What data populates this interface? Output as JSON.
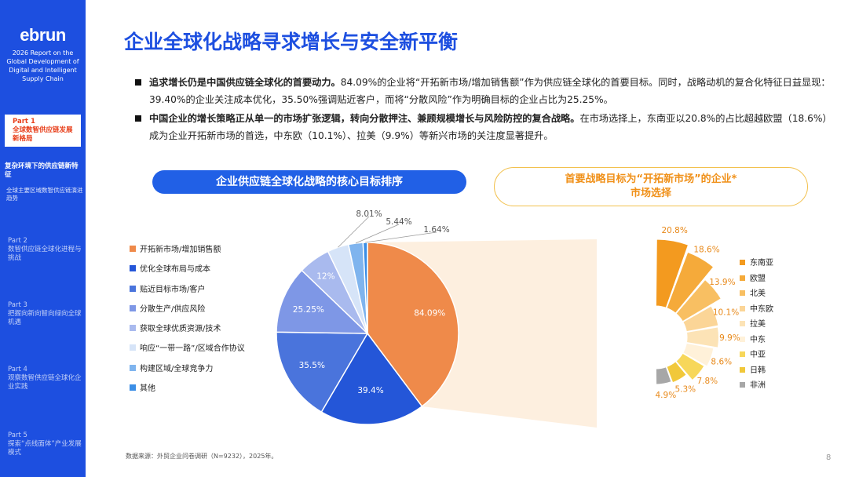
{
  "sidebar": {
    "logo": "ebrun",
    "report": "2026 Report on the Global Development of Digital and Intelligent Supply Chain",
    "part1": {
      "num": "Part 1",
      "label": "全球数智供应链发展新格局"
    },
    "sub1": "复杂环境下的供应链新特征",
    "sub2": "全球主要区域数智供应链演进趋势",
    "part2": {
      "num": "Part 2",
      "label": "数智供应链全球化进程与挑战"
    },
    "part3": {
      "num": "Part 3",
      "label": "把握向新向智向绿向全球机遇"
    },
    "part4": {
      "num": "Part 4",
      "label": "观察数智供应链全球化企业实践"
    },
    "part5": {
      "num": "Part 5",
      "label": "探索“点线面体”产业发展模式"
    }
  },
  "header": {
    "title": "企业全球化战略寻求增长与安全新平衡"
  },
  "bullets": [
    {
      "bold": "追求增长仍是中国供应链全球化的首要动力。",
      "text": "84.09%的企业将“开拓新市场/增加销售额”作为供应链全球化的首要目标。同时，战略动机的复合化特征日益显现：39.40%的企业关注成本优化，35.50%强调贴近客户，而将“分散风险”作为明确目标的企业占比为25.25%。"
    },
    {
      "bold": "中国企业的增长策略正从单一的市场扩张逻辑，转向分散押注、兼顾规模增长与风险防控的复合战略。",
      "text": "在市场选择上，东南亚以20.8%的占比超越欧盟（18.6%）成为企业开拓新市场的首选，中东欧（10.1%）、拉美（9.9%）等新兴市场的关注度显著提升。"
    }
  ],
  "pills": {
    "left": "企业供应链全球化战略的核心目标排序",
    "right_line1": "首要战略目标为“开拓新市场”的企业*",
    "right_line2": "市场选择"
  },
  "chart_data": [
    {
      "type": "pie",
      "title": "企业供应链全球化战略的核心目标排序",
      "slices": [
        {
          "label": "开拓新市场/增加销售额",
          "value": 84.09,
          "display": "84.09%",
          "color": "#ef8a4a"
        },
        {
          "label": "优化全球布局与成本",
          "value": 39.4,
          "display": "39.4%",
          "color": "#2456d8"
        },
        {
          "label": "贴近目标市场/客户",
          "value": 35.5,
          "display": "35.5%",
          "color": "#4a74dc"
        },
        {
          "label": "分散生产/供应风险",
          "value": 25.25,
          "display": "25.25%",
          "color": "#7e97e6"
        },
        {
          "label": "获取全球优质资源/技术",
          "value": 12,
          "display": "12%",
          "color": "#a9baee"
        },
        {
          "label": "响应“一带一路”/区域合作协议",
          "value": 8.01,
          "display": "8.01%",
          "color": "#d6e4f8"
        },
        {
          "label": "构建区域/全球竞争力",
          "value": 5.44,
          "display": "5.44%",
          "color": "#7fb4ee"
        },
        {
          "label": "其他",
          "value": 1.64,
          "display": "1.64%",
          "color": "#3b8ee6"
        }
      ]
    },
    {
      "type": "bar",
      "title": "市场选择",
      "categories": [
        "东南亚",
        "欧盟",
        "北美",
        "中东欧",
        "拉美",
        "中东",
        "中亚",
        "日韩",
        "非洲"
      ],
      "values": [
        20.8,
        18.6,
        13.9,
        10.1,
        9.9,
        8.6,
        7.8,
        5.3,
        4.9
      ],
      "displays": [
        "20.8%",
        "18.6%",
        "13.9%",
        "10.1%",
        "9.9%",
        "8.6%",
        "7.8%",
        "5.3%",
        "4.9%"
      ],
      "colors": [
        "#f39a1f",
        "#f5aa3a",
        "#f8bf62",
        "#fbd597",
        "#fce3b6",
        "#fff1d9",
        "#f7d75a",
        "#f1c83a",
        "#a7a7a7"
      ]
    }
  ],
  "footer": {
    "source": "数据来源：外贸企业问卷调研（N=9232），2025年。",
    "page": "8"
  }
}
